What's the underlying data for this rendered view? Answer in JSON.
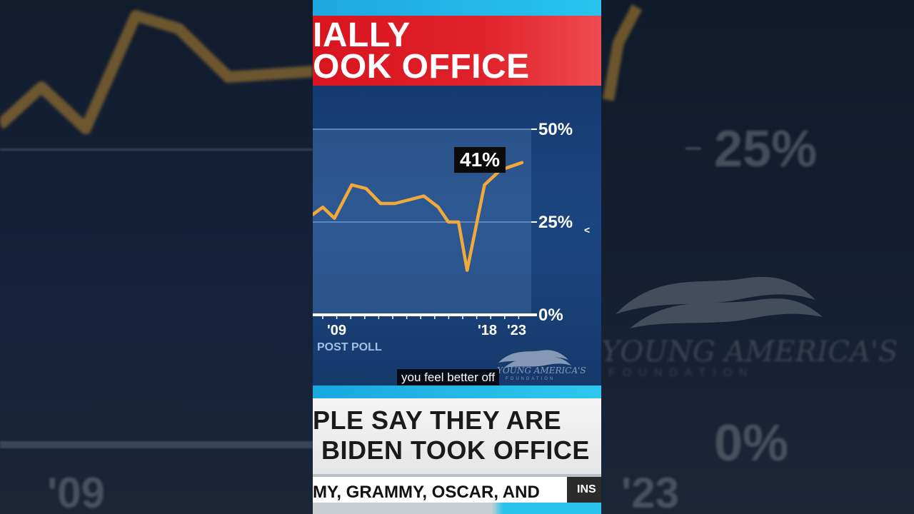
{
  "headline": {
    "line1": "IALLY",
    "line2": "OOK OFFICE"
  },
  "chart_data": {
    "type": "line",
    "series": [
      {
        "values": [
          {
            "x": 2007.3,
            "y": 27
          },
          {
            "x": 2008.0,
            "y": 29
          },
          {
            "x": 2008.8,
            "y": 26
          },
          {
            "x": 2010.0,
            "y": 35
          },
          {
            "x": 2011.0,
            "y": 34
          },
          {
            "x": 2012.0,
            "y": 30
          },
          {
            "x": 2013.0,
            "y": 30
          },
          {
            "x": 2015.0,
            "y": 32
          },
          {
            "x": 2016.0,
            "y": 29
          },
          {
            "x": 2016.7,
            "y": 25
          },
          {
            "x": 2017.4,
            "y": 25
          },
          {
            "x": 2018.0,
            "y": 12
          },
          {
            "x": 2019.2,
            "y": 35
          },
          {
            "x": 2020.3,
            "y": 39
          },
          {
            "x": 2021.8,
            "y": 41
          }
        ]
      }
    ],
    "y_ticks": [
      "50%",
      "25%",
      "0%"
    ],
    "x_ticks": [
      "'09",
      "'18",
      "'23"
    ],
    "ylim": [
      0,
      50
    ],
    "callout": "41%",
    "source": "POST POLL",
    "line_color": "#f2a93b"
  },
  "subtitle_caption": "you feel better off",
  "watermark": "YOUNG AMERICA'S",
  "watermark_sub": "FOUNDATION",
  "lower_third": {
    "line1": "PLE SAY THEY ARE",
    "line2": "BIDEN TOOK OFFICE"
  },
  "ticker": {
    "text": "MY, GRAMMY, OSCAR, AND",
    "tag": "INS"
  },
  "backdrop": {
    "left_tick": "'09",
    "right_tick_top": "25%",
    "right_tick_mid": "0%",
    "right_tick_bottom": "'23",
    "right_wm": "YOUNG AMERICA'S",
    "right_wm_sub": "FOUNDATION"
  }
}
